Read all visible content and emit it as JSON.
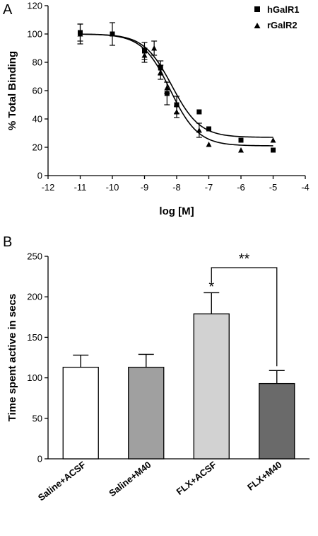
{
  "chart_data": [
    {
      "panel_label": "A",
      "type": "scatter",
      "xlabel": "log [M]",
      "ylabel": "% Total Binding",
      "xlim": [
        -12,
        -4
      ],
      "ylim": [
        0,
        120
      ],
      "x_ticks": [
        -12,
        -11,
        -10,
        -9,
        -8,
        -7,
        -6,
        -5,
        -4
      ],
      "y_ticks": [
        0,
        20,
        40,
        60,
        80,
        100,
        120
      ],
      "legend_position": "top-right",
      "series": [
        {
          "name": "hGalR1",
          "marker": "square",
          "points": [
            {
              "x": -11,
              "y": 101,
              "err": 6
            },
            {
              "x": -10,
              "y": 100,
              "err": 8
            },
            {
              "x": -9,
              "y": 88,
              "err": 6
            },
            {
              "x": -8.5,
              "y": 76,
              "err": 5
            },
            {
              "x": -8.3,
              "y": 58,
              "err": 8
            },
            {
              "x": -8,
              "y": 50,
              "err": 6
            },
            {
              "x": -7.3,
              "y": 45,
              "err": 0
            },
            {
              "x": -7,
              "y": 33,
              "err": 0
            },
            {
              "x": -6,
              "y": 25,
              "err": 0
            },
            {
              "x": -5,
              "y": 18,
              "err": 0
            }
          ],
          "fit": {
            "top": 100,
            "bottom": 27,
            "logEC50": -8.15,
            "hill": 1.0
          }
        },
        {
          "name": "rGalR2",
          "marker": "triangle",
          "points": [
            {
              "x": -11,
              "y": 100,
              "err": 7
            },
            {
              "x": -10,
              "y": 100,
              "err": 0
            },
            {
              "x": -9,
              "y": 85,
              "err": 5
            },
            {
              "x": -8.7,
              "y": 90,
              "err": 5
            },
            {
              "x": -8.5,
              "y": 73,
              "err": 5
            },
            {
              "x": -8.3,
              "y": 62,
              "err": 4
            },
            {
              "x": -8,
              "y": 45,
              "err": 4
            },
            {
              "x": -7.3,
              "y": 32,
              "err": 5
            },
            {
              "x": -7,
              "y": 22,
              "err": 0
            },
            {
              "x": -6,
              "y": 18,
              "err": 0
            },
            {
              "x": -5,
              "y": 25,
              "err": 0
            }
          ],
          "fit": {
            "top": 100,
            "bottom": 21,
            "logEC50": -8.2,
            "hill": 1.0
          }
        }
      ]
    },
    {
      "panel_label": "B",
      "type": "bar",
      "ylabel": "Time spent active in secs",
      "ylim": [
        0,
        250
      ],
      "y_ticks": [
        0,
        50,
        100,
        150,
        200,
        250
      ],
      "categories": [
        "Saline+ACSF",
        "Saline+M40",
        "FLX+ACSF",
        "FLX+M40"
      ],
      "values": [
        113,
        113,
        179,
        93
      ],
      "errors": [
        15,
        16,
        26,
        16
      ],
      "bar_colors": [
        "#ffffff",
        "#a0a0a0",
        "#d2d2d2",
        "#6a6a6a"
      ],
      "annotations": {
        "single_star": "*",
        "double_star": "**",
        "single_star_category": "FLX+ACSF",
        "bracket_between": [
          "FLX+ACSF",
          "FLX+M40"
        ]
      }
    }
  ]
}
